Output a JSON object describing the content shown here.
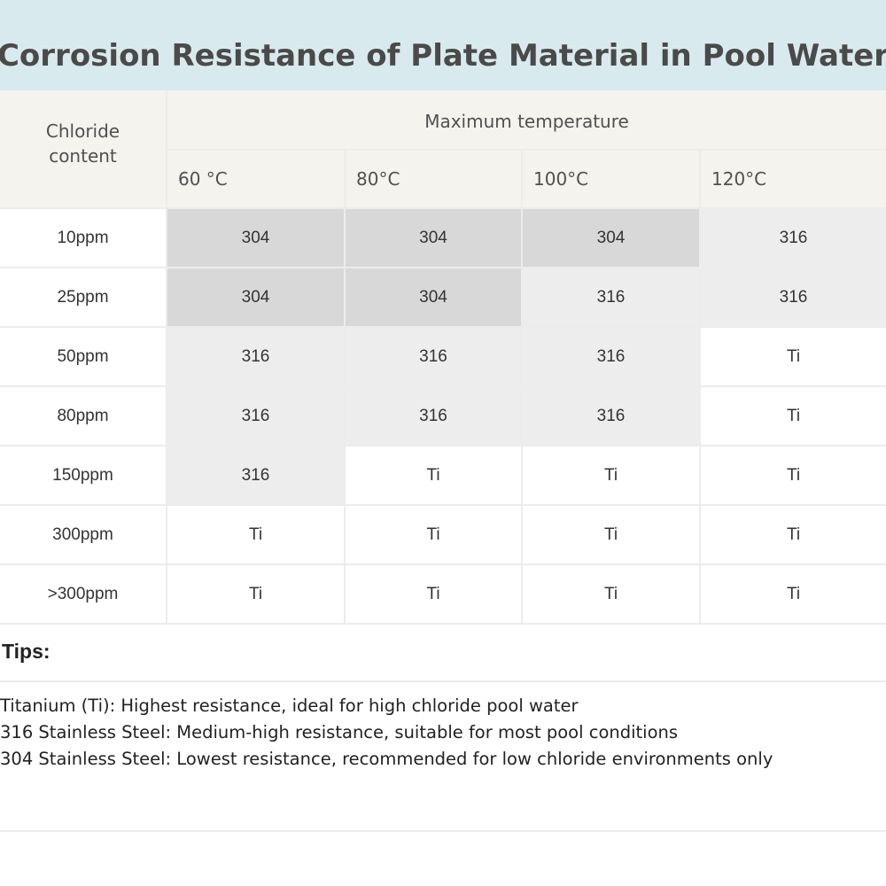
{
  "title": "Corrosion Resistance of Plate Material in Pool Water",
  "table": {
    "row_header": "Chloride content",
    "group_header": "Maximum temperature",
    "temperatures": [
      "60 °C",
      "80°C",
      "100°C",
      "120°C"
    ],
    "rows": [
      {
        "chloride": "10ppm",
        "values": [
          "304",
          "304",
          "304",
          "316"
        ]
      },
      {
        "chloride": "25ppm",
        "values": [
          "304",
          "304",
          "316",
          "316"
        ]
      },
      {
        "chloride": "50ppm",
        "values": [
          "316",
          "316",
          "316",
          "Ti"
        ]
      },
      {
        "chloride": "80ppm",
        "values": [
          "316",
          "316",
          "316",
          "Ti"
        ]
      },
      {
        "chloride": "150ppm",
        "values": [
          "316",
          "Ti",
          "Ti",
          "Ti"
        ]
      },
      {
        "chloride": "300ppm",
        "values": [
          "Ti",
          "Ti",
          "Ti",
          "Ti"
        ]
      },
      {
        "chloride": ">300ppm",
        "values": [
          "Ti",
          "Ti",
          "Ti",
          "Ti"
        ]
      }
    ],
    "material_colors": {
      "304": "#d8d8d8",
      "316": "#ededed",
      "Ti": "#ffffff"
    }
  },
  "tips": {
    "heading": "Tips:",
    "items": [
      "Titanium (Ti): Highest resistance, ideal for high chloride pool water",
      "316 Stainless Steel: Medium-high resistance, suitable for most pool conditions",
      "304 Stainless Steel: Lowest resistance, recommended for low chloride environments only"
    ]
  },
  "colors": {
    "title_bg": "#d9eaee",
    "header_bg": "#f4f3ee"
  }
}
